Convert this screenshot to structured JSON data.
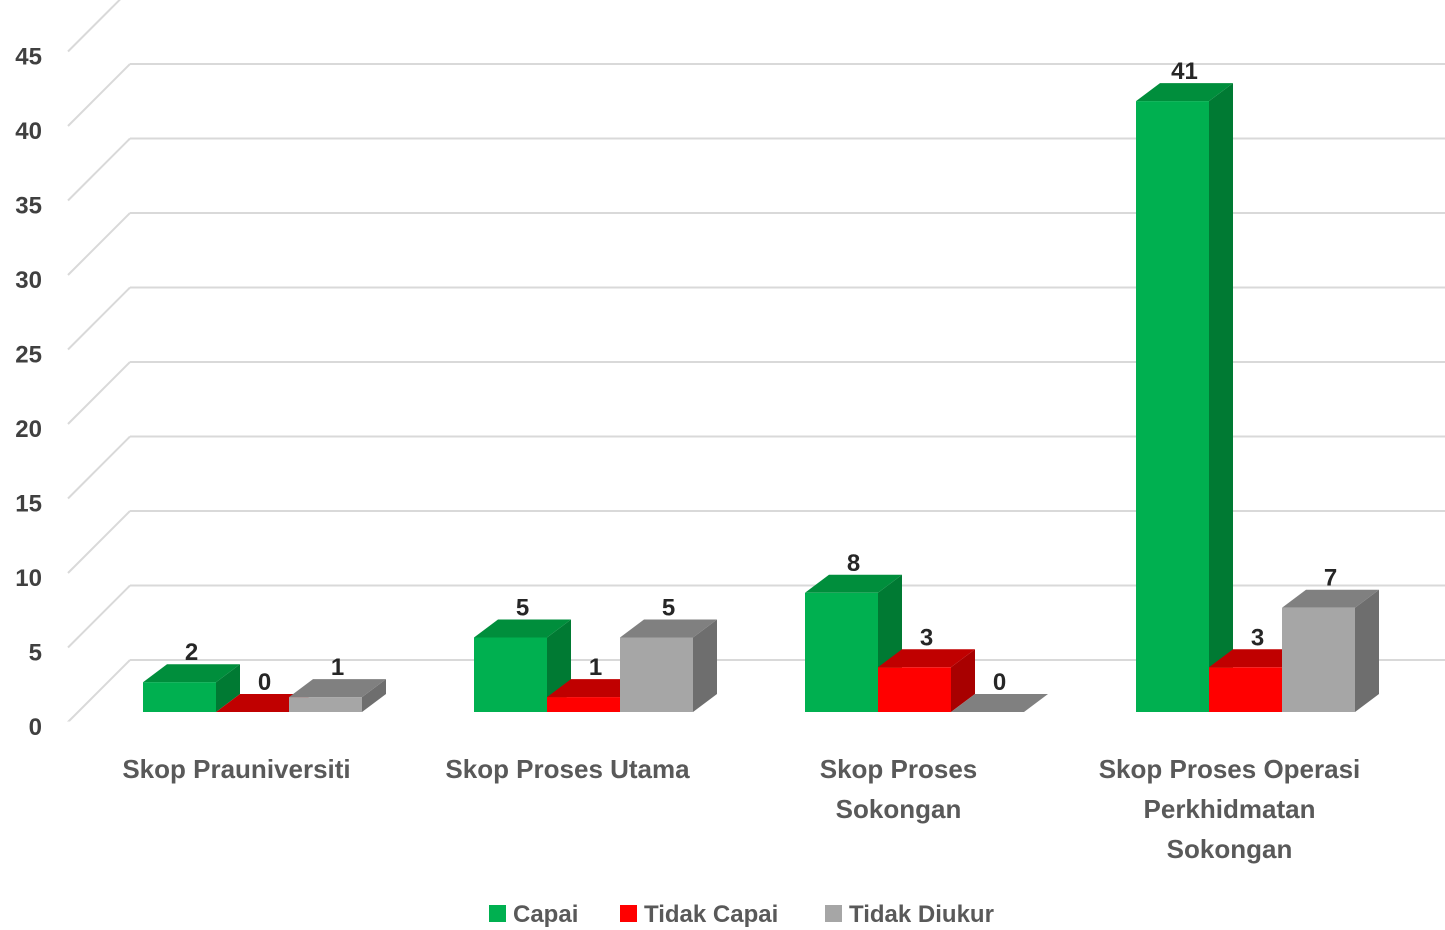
{
  "chart_data": {
    "type": "bar",
    "style": "3d-clustered-column",
    "categories": [
      [
        "Skop Prauniversiti"
      ],
      [
        "Skop Proses Utama"
      ],
      [
        "Skop Proses",
        "Sokongan"
      ],
      [
        "Skop Proses Operasi",
        "Perkhidmatan",
        "Sokongan"
      ]
    ],
    "series": [
      {
        "name": "Capai",
        "values": [
          2,
          5,
          8,
          41
        ],
        "color": "#00B050",
        "side": "#007A33",
        "top": "#008E3C"
      },
      {
        "name": "Tidak Capai",
        "values": [
          0,
          1,
          3,
          3
        ],
        "color": "#FF0000",
        "side": "#A80000",
        "top": "#C00000"
      },
      {
        "name": "Tidak Diukur",
        "values": [
          1,
          5,
          0,
          7
        ],
        "color": "#A6A6A6",
        "side": "#6E6E6E",
        "top": "#808080"
      }
    ],
    "yticks": [
      0,
      5,
      10,
      15,
      20,
      25,
      30,
      35,
      40,
      45
    ],
    "ylim": [
      0,
      45
    ],
    "grid": true,
    "data_labels": true,
    "legend_position": "bottom"
  }
}
